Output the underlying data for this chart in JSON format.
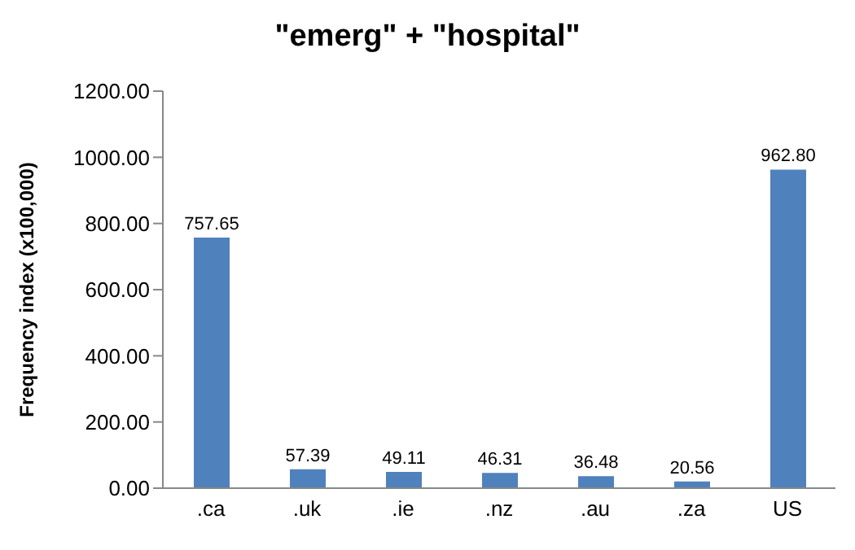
{
  "chart_data": {
    "type": "bar",
    "title": "\"emerg\" + \"hospital\"",
    "ylabel": "Frequency index (x100,000)",
    "categories": [
      ".ca",
      ".uk",
      ".ie",
      ".nz",
      ".au",
      ".za",
      "US"
    ],
    "values": [
      757.65,
      57.39,
      49.11,
      46.31,
      36.48,
      20.56,
      962.8
    ],
    "value_labels": [
      "757.65",
      "57.39",
      "49.11",
      "46.31",
      "36.48",
      "20.56",
      "962.80"
    ],
    "color": "#4f81bd",
    "ylim": [
      0,
      1200
    ],
    "yticks": [
      {
        "value": 0,
        "label": "0.00"
      },
      {
        "value": 200,
        "label": "200.00"
      },
      {
        "value": 400,
        "label": "400.00"
      },
      {
        "value": 600,
        "label": "600.00"
      },
      {
        "value": 800,
        "label": "800.00"
      },
      {
        "value": 1000,
        "label": "1000.00"
      },
      {
        "value": 1200,
        "label": "1200.00"
      }
    ],
    "grid": false,
    "legend": false
  }
}
